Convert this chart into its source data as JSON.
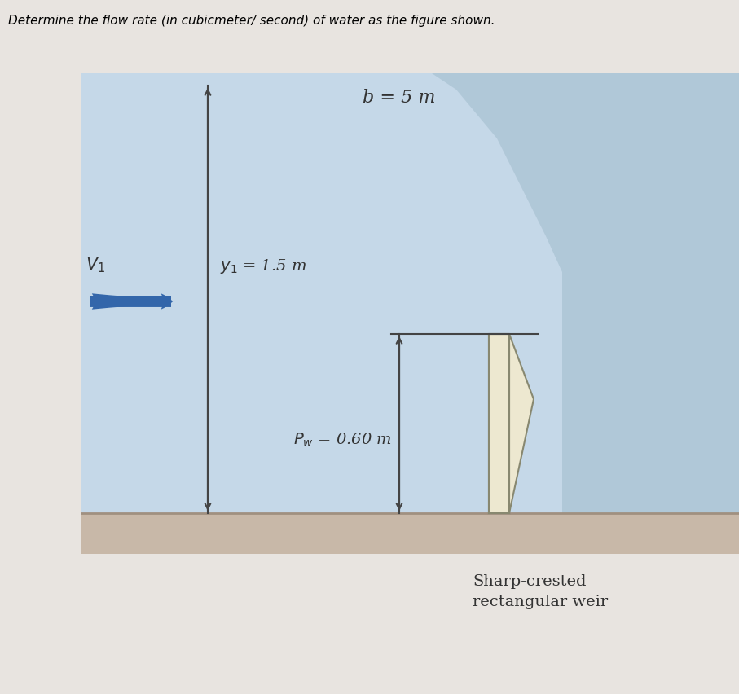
{
  "title": "Determine the flow rate (in cubicmeter/ second) of water as the figure shown.",
  "page_bg": "#e8e4e0",
  "water_color": "#c5d8e8",
  "wave_color": "#b0c8d8",
  "floor_color": "#c8b8a8",
  "floor_line_color": "#a09080",
  "weir_face_color": "#ede8d0",
  "weir_edge_color": "#888870",
  "arrow_color": "#3366aa",
  "dim_arrow_color": "#444444",
  "text_color": "#333333",
  "b_label": "b = 5 m",
  "y1_label": "y",
  "pw_label": "P",
  "weir_label_line1": "Sharp-crested",
  "weir_label_line2": "rectangular weir"
}
